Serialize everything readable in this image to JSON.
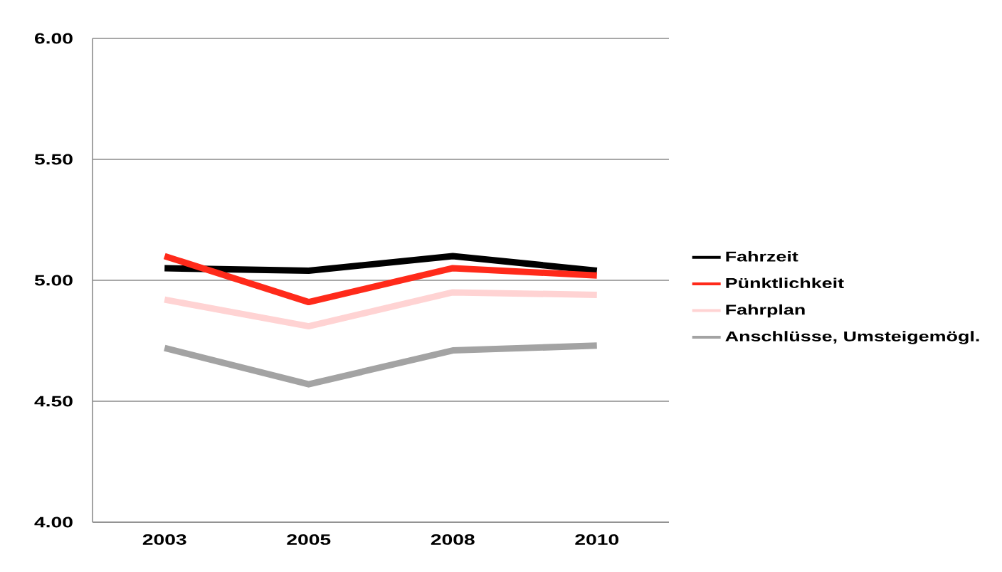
{
  "chart_data": {
    "type": "line",
    "categories": [
      "2003",
      "2005",
      "2008",
      "2010"
    ],
    "series": [
      {
        "name": "Fahrzeit",
        "color": "#000000",
        "values": [
          5.05,
          5.04,
          5.1,
          5.04
        ]
      },
      {
        "name": "Pünktlichkeit",
        "color": "#ff2a1a",
        "values": [
          5.1,
          4.91,
          5.05,
          5.02
        ]
      },
      {
        "name": "Fahrplan",
        "color": "#ffd3d3",
        "values": [
          4.92,
          4.81,
          4.95,
          4.94
        ]
      },
      {
        "name": "Anschlüsse, Umsteigemögl.",
        "color": "#a3a3a3",
        "values": [
          4.72,
          4.57,
          4.71,
          4.73
        ]
      }
    ],
    "ylim": [
      4,
      6
    ],
    "yticks": [
      {
        "value": 4,
        "label": "4.00"
      },
      {
        "value": 4.5,
        "label": "4.50"
      },
      {
        "value": 5,
        "label": "5.00"
      },
      {
        "value": 5.5,
        "label": "5.50"
      },
      {
        "value": 6,
        "label": "6.00"
      }
    ],
    "grid": "y",
    "legend": "right"
  }
}
